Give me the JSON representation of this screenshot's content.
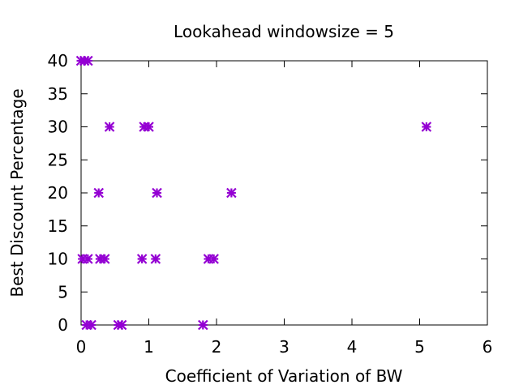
{
  "chart_data": {
    "type": "scatter",
    "title": "Lookahead windowsize = 5",
    "xlabel": "Coefficient of Variation of BW",
    "ylabel": "Best Discount Percentage",
    "xlim": [
      0,
      6
    ],
    "ylim": [
      0,
      40
    ],
    "x_ticks": [
      0,
      1,
      2,
      3,
      4,
      5,
      6
    ],
    "y_ticks": [
      0,
      5,
      10,
      15,
      20,
      25,
      30,
      35,
      40
    ],
    "grid": false,
    "legend": "none",
    "marker": "star",
    "marker_color": "#9400d3",
    "series": [
      {
        "points": [
          {
            "x": 0.0,
            "y": 40
          },
          {
            "x": 0.05,
            "y": 40
          },
          {
            "x": 0.1,
            "y": 40
          },
          {
            "x": 0.42,
            "y": 30
          },
          {
            "x": 0.93,
            "y": 30
          },
          {
            "x": 1.0,
            "y": 30
          },
          {
            "x": 5.1,
            "y": 30
          },
          {
            "x": 0.26,
            "y": 20
          },
          {
            "x": 1.12,
            "y": 20
          },
          {
            "x": 2.22,
            "y": 20
          },
          {
            "x": 0.02,
            "y": 10
          },
          {
            "x": 0.1,
            "y": 10
          },
          {
            "x": 0.28,
            "y": 10
          },
          {
            "x": 0.35,
            "y": 10
          },
          {
            "x": 0.9,
            "y": 10
          },
          {
            "x": 1.1,
            "y": 10
          },
          {
            "x": 1.88,
            "y": 10
          },
          {
            "x": 1.96,
            "y": 10
          },
          {
            "x": 0.08,
            "y": 0
          },
          {
            "x": 0.15,
            "y": 0
          },
          {
            "x": 0.55,
            "y": 0
          },
          {
            "x": 0.6,
            "y": 0
          },
          {
            "x": 1.8,
            "y": 0
          }
        ]
      }
    ]
  }
}
